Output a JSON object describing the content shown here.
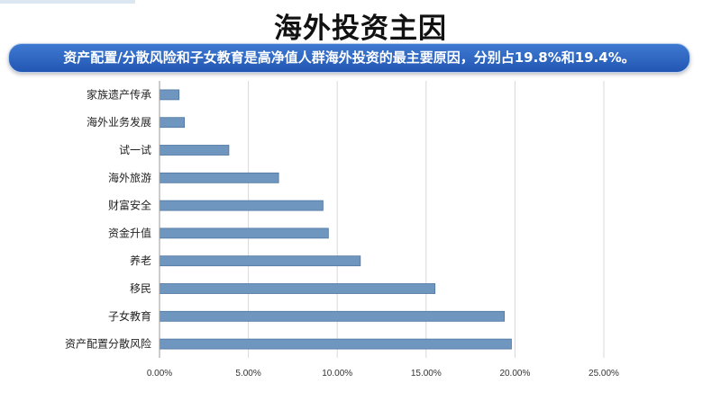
{
  "title": "海外投资主因",
  "banner": "资产配置/分散风险和子女教育是高净值人群海外投资的最主要原因，分别占19.8%和19.4%。",
  "chart_data": {
    "type": "bar",
    "orientation": "horizontal",
    "categories": [
      "家族遗产传承",
      "海外业务发展",
      "试一试",
      "海外旅游",
      "财富安全",
      "资金升值",
      "养老",
      "移民",
      "子女教育",
      "资产配置分散风险"
    ],
    "values": [
      1.1,
      1.4,
      3.9,
      6.7,
      9.2,
      9.5,
      11.3,
      15.5,
      19.4,
      19.8
    ],
    "xlim": [
      0,
      25
    ],
    "xticks": [
      "0.00%",
      "5.00%",
      "10.00%",
      "15.00%",
      "20.00%",
      "25.00%"
    ],
    "grid": true,
    "bar_color": "#6e96bf"
  }
}
